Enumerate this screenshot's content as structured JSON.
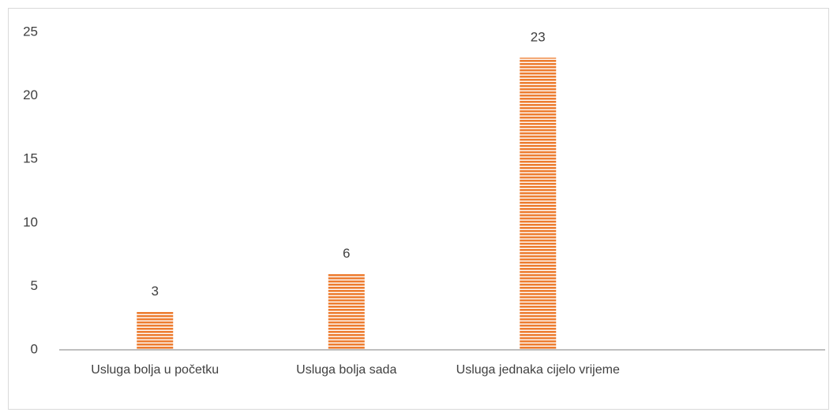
{
  "chart_data": {
    "type": "bar",
    "categories": [
      "Usluga bolja u početku",
      "Usluga bolja sada",
      "Usluga jednaka cijelo vrijeme",
      null
    ],
    "values": [
      3,
      6,
      23,
      null
    ],
    "color": "#ed7d31",
    "ylim": [
      0,
      25
    ],
    "yticks": [
      0,
      5,
      10,
      15,
      20,
      25
    ],
    "grid": false
  }
}
